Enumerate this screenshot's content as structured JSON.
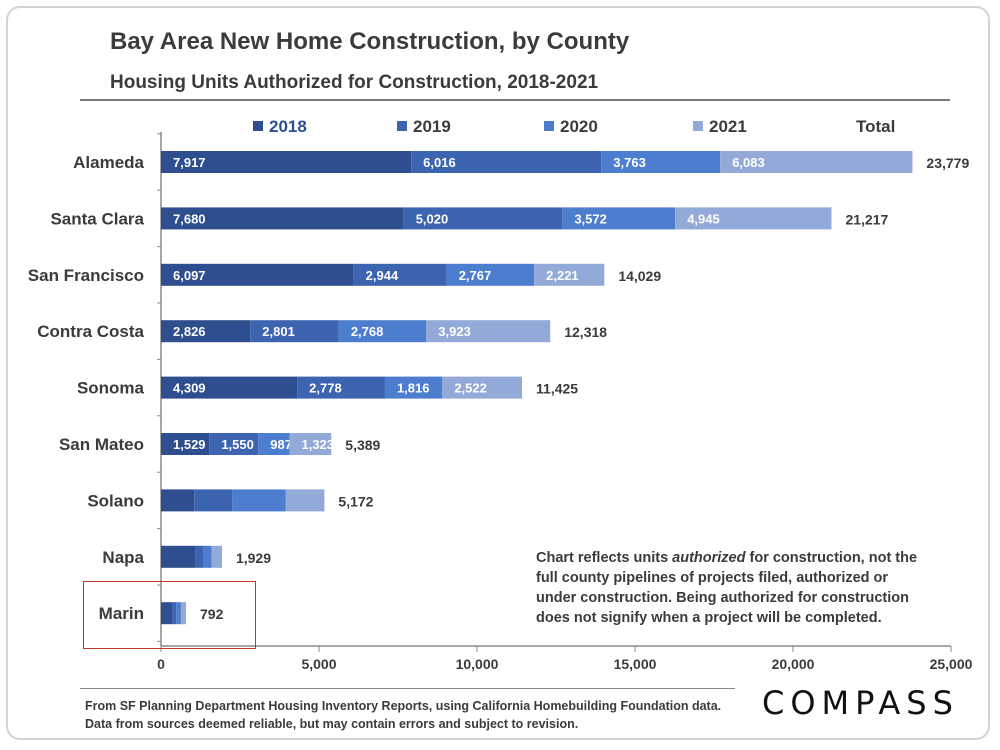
{
  "title": "Bay Area New Home Construction, by County",
  "subtitle": "Housing Units Authorized for Construction, 2018-2021",
  "note": {
    "part1": "Chart reflects units ",
    "emphasis": "authorized",
    "part2": " for construction, not the full county pipelines of projects filed, authorized or under construction. Being authorized for construction does not signify when a project will be completed."
  },
  "source": "From SF Planning Department Housing Inventory Reports, using California Homebuilding Foundation data. Data from sources deemed reliable, but may contain errors and subject to revision.",
  "logo": "COMPASS",
  "colors": {
    "2018": "#2e4e8f",
    "2019": "#3d64b0",
    "2020": "#4d7dcf",
    "2021": "#93a9d8",
    "text": "#3b3b3b",
    "highlight": "#c0392b"
  },
  "chart_data": {
    "type": "bar",
    "orientation": "horizontal",
    "stacked": true,
    "title": "Bay Area New Home Construction, by County",
    "subtitle": "Housing Units Authorized for Construction, 2018-2021",
    "categories": [
      "Alameda",
      "Santa Clara",
      "San Francisco",
      "Contra Costa",
      "Sonoma",
      "San Mateo",
      "Solano",
      "Napa",
      "Marin"
    ],
    "series": [
      {
        "name": "2018",
        "values": [
          7917,
          7680,
          6097,
          2826,
          4309,
          1529,
          1050,
          1100,
          350
        ]
      },
      {
        "name": "2019",
        "values": [
          6016,
          5020,
          2944,
          2801,
          2778,
          1550,
          1200,
          250,
          130
        ]
      },
      {
        "name": "2020",
        "values": [
          3763,
          3572,
          2767,
          2768,
          1816,
          987,
          1700,
          250,
          150
        ]
      },
      {
        "name": "2021",
        "values": [
          6083,
          4945,
          2221,
          3923,
          2522,
          1323,
          1222,
          329,
          162
        ]
      }
    ],
    "value_labels": [
      [
        "7,917",
        "6,016",
        "3,763",
        "6,083"
      ],
      [
        "7,680",
        "5,020",
        "3,572",
        "4,945"
      ],
      [
        "6,097",
        "2,944",
        "2,767",
        "2,221"
      ],
      [
        "2,826",
        "2,801",
        "2,768",
        "3,923"
      ],
      [
        "4,309",
        "2,778",
        "1,816",
        "2,522"
      ],
      [
        "1,529",
        "1,550",
        "987",
        "1,323"
      ],
      [
        "",
        "",
        "",
        ""
      ],
      [
        "",
        "",
        "",
        ""
      ],
      [
        "",
        "",
        "",
        ""
      ]
    ],
    "totals": [
      23779,
      21217,
      14029,
      12318,
      11425,
      5389,
      5172,
      1929,
      792
    ],
    "total_labels": [
      "23,779",
      "21,217",
      "14,029",
      "12,318",
      "11,425",
      "5,389",
      "5,172",
      "1,929",
      "792"
    ],
    "legend": [
      "2018",
      "2019",
      "2020",
      "2021",
      "Total"
    ],
    "xlim": [
      0,
      25000
    ],
    "xticks": [
      0,
      5000,
      10000,
      15000,
      20000,
      25000
    ],
    "xtick_labels": [
      "0",
      "5,000",
      "10,000",
      "15,000",
      "20,000",
      "25,000"
    ],
    "grid": false,
    "highlighted_category": "Marin"
  }
}
